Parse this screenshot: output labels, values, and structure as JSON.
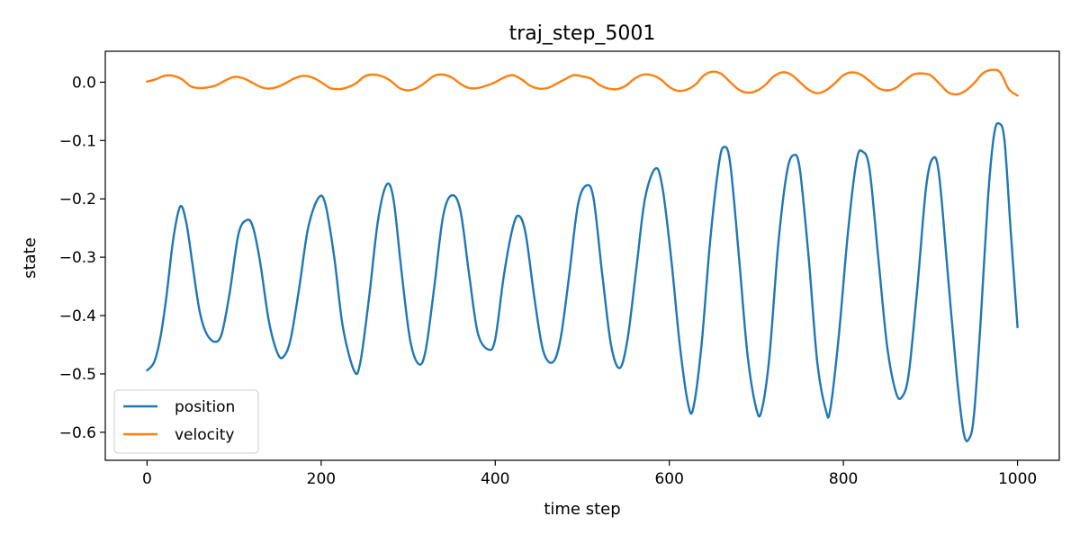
{
  "chart_data": {
    "type": "line",
    "title": "traj_step_5001",
    "xlabel": "time step",
    "ylabel": "state",
    "xlim": [
      -48,
      1048
    ],
    "ylim": [
      -0.648,
      0.053
    ],
    "grid": false,
    "legend_position": "lower-left",
    "x_ticks": [
      0,
      200,
      400,
      600,
      800,
      1000
    ],
    "x_tick_labels": [
      "0",
      "200",
      "400",
      "600",
      "800",
      "1000"
    ],
    "y_ticks": [
      0.0,
      -0.1,
      -0.2,
      -0.3,
      -0.4,
      -0.5,
      -0.6
    ],
    "y_tick_labels": [
      "0.0",
      "−0.1",
      "−0.2",
      "−0.3",
      "−0.4",
      "−0.5",
      "−0.6"
    ],
    "series": [
      {
        "name": "position",
        "color": "#1f77b4",
        "points": [
          [
            0,
            -0.494
          ],
          [
            8,
            -0.48
          ],
          [
            15,
            -0.44
          ],
          [
            22,
            -0.37
          ],
          [
            30,
            -0.27
          ],
          [
            38,
            -0.213
          ],
          [
            45,
            -0.24
          ],
          [
            52,
            -0.31
          ],
          [
            60,
            -0.39
          ],
          [
            68,
            -0.43
          ],
          [
            78,
            -0.445
          ],
          [
            86,
            -0.43
          ],
          [
            95,
            -0.36
          ],
          [
            105,
            -0.26
          ],
          [
            115,
            -0.236
          ],
          [
            122,
            -0.25
          ],
          [
            130,
            -0.31
          ],
          [
            140,
            -0.41
          ],
          [
            150,
            -0.465
          ],
          [
            157,
            -0.47
          ],
          [
            165,
            -0.44
          ],
          [
            175,
            -0.35
          ],
          [
            185,
            -0.25
          ],
          [
            197,
            -0.198
          ],
          [
            205,
            -0.21
          ],
          [
            215,
            -0.3
          ],
          [
            225,
            -0.42
          ],
          [
            238,
            -0.495
          ],
          [
            245,
            -0.48
          ],
          [
            255,
            -0.37
          ],
          [
            265,
            -0.24
          ],
          [
            275,
            -0.176
          ],
          [
            283,
            -0.2
          ],
          [
            292,
            -0.32
          ],
          [
            302,
            -0.44
          ],
          [
            312,
            -0.483
          ],
          [
            320,
            -0.46
          ],
          [
            330,
            -0.35
          ],
          [
            340,
            -0.23
          ],
          [
            350,
            -0.194
          ],
          [
            360,
            -0.22
          ],
          [
            370,
            -0.33
          ],
          [
            380,
            -0.43
          ],
          [
            392,
            -0.458
          ],
          [
            400,
            -0.44
          ],
          [
            410,
            -0.33
          ],
          [
            420,
            -0.25
          ],
          [
            427,
            -0.229
          ],
          [
            435,
            -0.26
          ],
          [
            445,
            -0.37
          ],
          [
            455,
            -0.46
          ],
          [
            466,
            -0.48
          ],
          [
            475,
            -0.44
          ],
          [
            485,
            -0.33
          ],
          [
            495,
            -0.21
          ],
          [
            505,
            -0.177
          ],
          [
            513,
            -0.2
          ],
          [
            523,
            -0.33
          ],
          [
            533,
            -0.45
          ],
          [
            543,
            -0.49
          ],
          [
            552,
            -0.44
          ],
          [
            562,
            -0.32
          ],
          [
            572,
            -0.2
          ],
          [
            584,
            -0.148
          ],
          [
            592,
            -0.18
          ],
          [
            602,
            -0.3
          ],
          [
            612,
            -0.45
          ],
          [
            622,
            -0.555
          ],
          [
            628,
            -0.555
          ],
          [
            637,
            -0.45
          ],
          [
            647,
            -0.27
          ],
          [
            657,
            -0.14
          ],
          [
            663,
            -0.111
          ],
          [
            670,
            -0.14
          ],
          [
            680,
            -0.3
          ],
          [
            690,
            -0.47
          ],
          [
            700,
            -0.56
          ],
          [
            706,
            -0.563
          ],
          [
            715,
            -0.47
          ],
          [
            725,
            -0.28
          ],
          [
            735,
            -0.155
          ],
          [
            743,
            -0.125
          ],
          [
            750,
            -0.15
          ],
          [
            760,
            -0.3
          ],
          [
            770,
            -0.48
          ],
          [
            780,
            -0.563
          ],
          [
            785,
            -0.56
          ],
          [
            795,
            -0.43
          ],
          [
            805,
            -0.26
          ],
          [
            815,
            -0.135
          ],
          [
            822,
            -0.119
          ],
          [
            830,
            -0.15
          ],
          [
            840,
            -0.3
          ],
          [
            850,
            -0.45
          ],
          [
            860,
            -0.53
          ],
          [
            867,
            -0.54
          ],
          [
            875,
            -0.5
          ],
          [
            885,
            -0.35
          ],
          [
            895,
            -0.18
          ],
          [
            903,
            -0.13
          ],
          [
            910,
            -0.16
          ],
          [
            920,
            -0.33
          ],
          [
            930,
            -0.5
          ],
          [
            938,
            -0.6
          ],
          [
            944,
            -0.612
          ],
          [
            950,
            -0.57
          ],
          [
            958,
            -0.4
          ],
          [
            966,
            -0.2
          ],
          [
            973,
            -0.09
          ],
          [
            979,
            -0.071
          ],
          [
            985,
            -0.1
          ],
          [
            992,
            -0.25
          ],
          [
            1000,
            -0.42
          ]
        ]
      },
      {
        "name": "velocity",
        "color": "#ff7f0e",
        "points": [
          [
            0,
            0.001
          ],
          [
            10,
            0.005
          ],
          [
            20,
            0.011
          ],
          [
            30,
            0.011
          ],
          [
            40,
            0.005
          ],
          [
            50,
            -0.007
          ],
          [
            60,
            -0.01
          ],
          [
            70,
            -0.009
          ],
          [
            80,
            -0.005
          ],
          [
            90,
            0.003
          ],
          [
            100,
            0.009
          ],
          [
            110,
            0.007
          ],
          [
            120,
            0.0
          ],
          [
            130,
            -0.008
          ],
          [
            140,
            -0.011
          ],
          [
            150,
            -0.008
          ],
          [
            160,
            -0.001
          ],
          [
            170,
            0.007
          ],
          [
            180,
            0.011
          ],
          [
            190,
            0.008
          ],
          [
            200,
            0.0
          ],
          [
            210,
            -0.01
          ],
          [
            220,
            -0.012
          ],
          [
            230,
            -0.009
          ],
          [
            240,
            -0.002
          ],
          [
            250,
            0.01
          ],
          [
            260,
            0.013
          ],
          [
            270,
            0.01
          ],
          [
            280,
            0.002
          ],
          [
            290,
            -0.01
          ],
          [
            300,
            -0.014
          ],
          [
            310,
            -0.01
          ],
          [
            320,
            0.0
          ],
          [
            330,
            0.011
          ],
          [
            340,
            0.013
          ],
          [
            350,
            0.008
          ],
          [
            360,
            -0.003
          ],
          [
            370,
            -0.01
          ],
          [
            380,
            -0.01
          ],
          [
            390,
            -0.006
          ],
          [
            400,
            0.0
          ],
          [
            410,
            0.008
          ],
          [
            420,
            0.012
          ],
          [
            430,
            0.005
          ],
          [
            440,
            -0.006
          ],
          [
            450,
            -0.011
          ],
          [
            460,
            -0.01
          ],
          [
            470,
            -0.003
          ],
          [
            480,
            0.005
          ],
          [
            490,
            0.012
          ],
          [
            500,
            0.01
          ],
          [
            510,
            0.006
          ],
          [
            520,
            -0.005
          ],
          [
            530,
            -0.011
          ],
          [
            540,
            -0.012
          ],
          [
            550,
            -0.006
          ],
          [
            560,
            0.006
          ],
          [
            570,
            0.013
          ],
          [
            580,
            0.012
          ],
          [
            590,
            0.005
          ],
          [
            600,
            -0.008
          ],
          [
            610,
            -0.015
          ],
          [
            620,
            -0.013
          ],
          [
            630,
            -0.004
          ],
          [
            640,
            0.012
          ],
          [
            650,
            0.018
          ],
          [
            660,
            0.014
          ],
          [
            670,
            0.0
          ],
          [
            680,
            -0.013
          ],
          [
            690,
            -0.018
          ],
          [
            700,
            -0.015
          ],
          [
            710,
            -0.005
          ],
          [
            720,
            0.01
          ],
          [
            730,
            0.017
          ],
          [
            740,
            0.013
          ],
          [
            750,
            0.0
          ],
          [
            760,
            -0.013
          ],
          [
            770,
            -0.019
          ],
          [
            780,
            -0.014
          ],
          [
            790,
            -0.002
          ],
          [
            800,
            0.012
          ],
          [
            810,
            0.017
          ],
          [
            820,
            0.013
          ],
          [
            830,
            0.002
          ],
          [
            840,
            -0.01
          ],
          [
            850,
            -0.014
          ],
          [
            860,
            -0.01
          ],
          [
            870,
            0.002
          ],
          [
            880,
            0.013
          ],
          [
            890,
            0.015
          ],
          [
            900,
            0.012
          ],
          [
            910,
            -0.002
          ],
          [
            920,
            -0.017
          ],
          [
            930,
            -0.021
          ],
          [
            940,
            -0.015
          ],
          [
            950,
            -0.002
          ],
          [
            960,
            0.015
          ],
          [
            970,
            0.021
          ],
          [
            980,
            0.017
          ],
          [
            990,
            -0.012
          ],
          [
            1000,
            -0.023
          ]
        ]
      }
    ]
  }
}
